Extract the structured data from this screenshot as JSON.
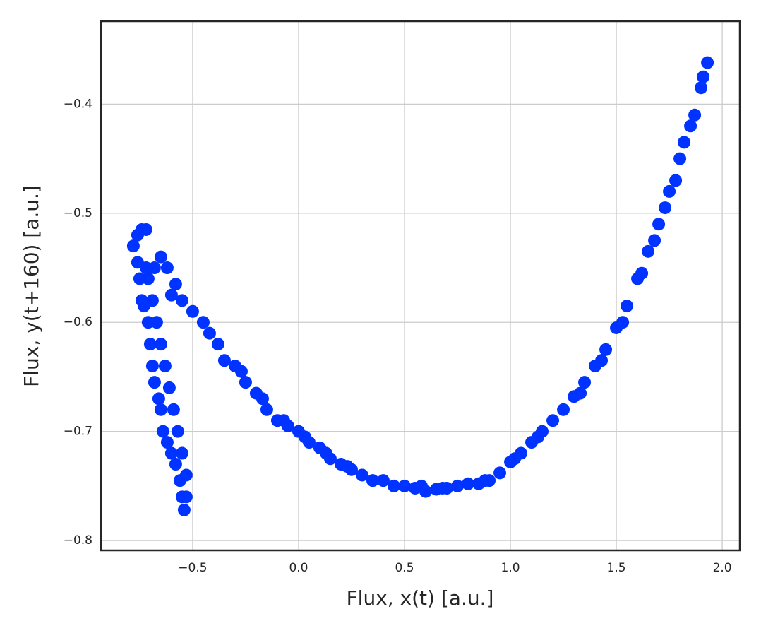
{
  "chart_data": {
    "type": "scatter",
    "xlabel": "Flux, x(t) [a.u.]",
    "ylabel": "Flux, y(t+160) [a.u.]",
    "color": "#0033ff",
    "grid": true,
    "xlim": [
      -0.933,
      2.083
    ],
    "ylim": [
      -0.809,
      -0.324
    ],
    "xticks": [
      {
        "value": -0.5,
        "label": "−0.5"
      },
      {
        "value": 0,
        "label": "0.0"
      },
      0.5,
      {
        "value": 1,
        "label": "1.0"
      },
      1.5,
      {
        "value": 2,
        "label": "2.0"
      }
    ],
    "yticks": [
      {
        "value": -0.8,
        "label": "−0.8"
      },
      {
        "value": -0.7,
        "label": "−0.7"
      },
      {
        "value": -0.6,
        "label": "−0.6"
      },
      {
        "value": -0.5,
        "label": "−0.5"
      },
      {
        "value": -0.4,
        "label": "−0.4"
      }
    ],
    "x": [
      -0.78,
      -0.76,
      -0.74,
      -0.72,
      -0.76,
      -0.75,
      -0.74,
      -0.72,
      -0.71,
      -0.7,
      -0.69,
      -0.68,
      -0.66,
      -0.65,
      -0.64,
      -0.62,
      -0.6,
      -0.58,
      -0.56,
      -0.55,
      -0.54,
      -0.53,
      -0.53,
      -0.55,
      -0.57,
      -0.59,
      -0.61,
      -0.63,
      -0.65,
      -0.67,
      -0.69,
      -0.71,
      -0.73,
      -0.68,
      -0.6,
      -0.65,
      -0.62,
      -0.58,
      -0.55,
      -0.5,
      -0.45,
      -0.42,
      -0.38,
      -0.35,
      -0.3,
      -0.27,
      -0.25,
      -0.2,
      -0.17,
      -0.15,
      -0.1,
      -0.07,
      -0.05,
      0,
      0.03,
      0.05,
      0.1,
      0.13,
      0.15,
      0.2,
      0.23,
      0.25,
      0.3,
      0.35,
      0.4,
      0.45,
      0.5,
      0.55,
      0.58,
      0.6,
      0.65,
      0.68,
      0.7,
      0.75,
      0.8,
      0.85,
      0.88,
      0.9,
      0.95,
      1.0,
      1.02,
      1.05,
      1.1,
      1.13,
      1.15,
      1.2,
      1.25,
      1.3,
      1.33,
      1.35,
      1.4,
      1.43,
      1.45,
      1.5,
      1.53,
      1.55,
      1.6,
      1.62,
      1.65,
      1.68,
      1.7,
      1.73,
      1.75,
      1.78,
      1.8,
      1.82,
      1.85,
      1.87,
      1.9,
      1.91,
      1.93
    ],
    "values": [
      -0.53,
      -0.52,
      -0.515,
      -0.515,
      -0.545,
      -0.56,
      -0.58,
      -0.55,
      -0.6,
      -0.62,
      -0.64,
      -0.655,
      -0.67,
      -0.68,
      -0.7,
      -0.71,
      -0.72,
      -0.73,
      -0.745,
      -0.76,
      -0.772,
      -0.76,
      -0.74,
      -0.72,
      -0.7,
      -0.68,
      -0.66,
      -0.64,
      -0.62,
      -0.6,
      -0.58,
      -0.56,
      -0.585,
      -0.55,
      -0.575,
      -0.54,
      -0.55,
      -0.565,
      -0.58,
      -0.59,
      -0.6,
      -0.61,
      -0.62,
      -0.635,
      -0.64,
      -0.645,
      -0.655,
      -0.665,
      -0.67,
      -0.68,
      -0.69,
      -0.69,
      -0.695,
      -0.7,
      -0.705,
      -0.71,
      -0.715,
      -0.72,
      -0.725,
      -0.73,
      -0.732,
      -0.735,
      -0.74,
      -0.745,
      -0.745,
      -0.75,
      -0.75,
      -0.752,
      -0.75,
      -0.755,
      -0.753,
      -0.752,
      -0.752,
      -0.75,
      -0.748,
      -0.748,
      -0.745,
      -0.745,
      -0.738,
      -0.728,
      -0.725,
      -0.72,
      -0.71,
      -0.705,
      -0.7,
      -0.69,
      -0.68,
      -0.668,
      -0.665,
      -0.655,
      -0.64,
      -0.635,
      -0.625,
      -0.605,
      -0.6,
      -0.585,
      -0.56,
      -0.555,
      -0.535,
      -0.525,
      -0.51,
      -0.495,
      -0.48,
      -0.47,
      -0.45,
      -0.435,
      -0.42,
      -0.41,
      -0.385,
      -0.375,
      -0.362
    ]
  }
}
